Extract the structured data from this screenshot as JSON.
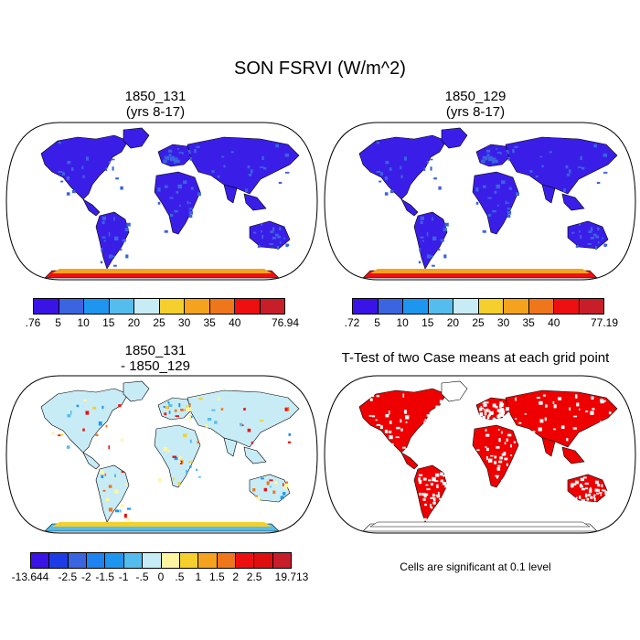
{
  "main_title": "SON FSRVI (W/m^2)",
  "panels": [
    {
      "id": "p1",
      "title_line1": "1850_131",
      "title_line2": "(yrs 8-17)"
    },
    {
      "id": "p2",
      "title_line1": "1850_129",
      "title_line2": "(yrs 8-17)"
    },
    {
      "id": "p3",
      "title_line1": "1850_131",
      "title_line2": "- 1850_129"
    },
    {
      "id": "p4",
      "title_line1": "T-Test of two Case means at each grid point",
      "title_line2": ""
    }
  ],
  "colorbar1": {
    "labels": [
      ".76",
      "5",
      "10",
      "15",
      "20",
      "25",
      "30",
      "35",
      "40",
      "76.94"
    ],
    "colors": [
      "#3a14e6",
      "#3a64e0",
      "#1e96f0",
      "#55bdee",
      "#c8ecf6",
      "#f5d02c",
      "#f5a21e",
      "#f0761b",
      "#ee1010",
      "#c81e2a"
    ]
  },
  "colorbar2": {
    "labels": [
      ".72",
      "5",
      "10",
      "15",
      "20",
      "25",
      "30",
      "35",
      "40",
      "77.19"
    ],
    "colors": [
      "#3a14e6",
      "#3a64e0",
      "#1e96f0",
      "#55bdee",
      "#c8ecf6",
      "#f5d02c",
      "#f5a21e",
      "#f0761b",
      "#ee1010",
      "#c81e2a"
    ]
  },
  "colorbar3": {
    "labels": [
      "-13.644",
      "-2.5",
      "-2",
      "-1.5",
      "-1",
      "-.5",
      "0",
      ".5",
      "1",
      "1.5",
      "2",
      "2.5",
      "19.713"
    ],
    "colors": [
      "#3a14e6",
      "#1e3ce6",
      "#3a64e0",
      "#1e82f0",
      "#1e96f0",
      "#55bdee",
      "#c8ecf6",
      "#fff5a0",
      "#f5d02c",
      "#f5a21e",
      "#f0761b",
      "#ee1010",
      "#e00f0f",
      "#c81e2a"
    ]
  },
  "note": "Cells are significant at 0.1 level",
  "map_fills": {
    "p1": {
      "land": "#3a1ee8",
      "accent": "#3a64e0",
      "antarctica": "#ee1010",
      "antarctica_edge": "#f5a21e"
    },
    "p2": {
      "land": "#3a1ee8",
      "accent": "#3a64e0",
      "antarctica": "#ee1010",
      "antarctica_edge": "#f5a21e"
    },
    "p3": {
      "land": "#c8ecf6",
      "accent": "#fff5a0",
      "antarctica": "#55bdee",
      "antarctica_edge": "#f5d02c"
    },
    "p4": {
      "land": "#ee0000",
      "accent": "#ffffff",
      "antarctica": "#ffffff",
      "antarctica_edge": "#ffffff"
    }
  }
}
